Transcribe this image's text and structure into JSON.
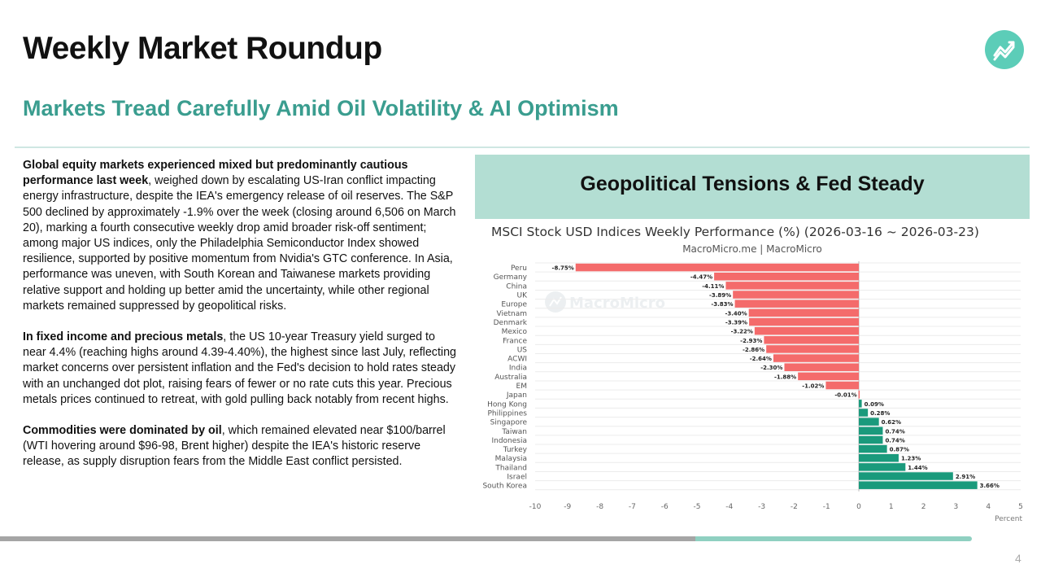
{
  "header": {
    "title": "Weekly Market Roundup",
    "subtitle": "Markets Tread Carefully Amid Oil Volatility & AI Optimism",
    "logo_icon": "trend-chart-logo-icon"
  },
  "body_text": {
    "p1_bold": "Global equity markets experienced mixed but predominantly cautious performance last week",
    "p1_rest": ", weighed down by escalating US-Iran conflict impacting energy infrastructure, despite the IEA's emergency release of oil reserves. The S&P 500 declined by approximately -1.9% over the week (closing around 6,506 on March 20), marking a fourth consecutive weekly drop amid broader risk-off sentiment; among major US indices, only the Philadelphia Semiconductor Index showed resilience, supported by positive momentum from Nvidia's GTC conference. In Asia, performance was uneven, with South Korean and Taiwanese markets providing relative support and holding up better amid the uncertainty, while other regional markets remained suppressed by geopolitical risks.",
    "p2_bold": "In fixed income and precious metals",
    "p2_rest": ", the US 10-year Treasury yield surged to near 4.4% (reaching highs around 4.39-4.40%), the highest since last July, reflecting market concerns over persistent inflation and the Fed's decision to hold rates steady with an unchanged dot plot, raising fears of fewer or no rate cuts this year. Precious metals prices continued to retreat, with gold pulling back notably from recent highs.",
    "p3_bold": "Commodities were dominated by oil",
    "p3_rest": ", which remained elevated near $100/barrel (WTI hovering around $96-98, Brent higher) despite the IEA's historic reserve release, as supply disruption fears from the Middle East conflict persisted."
  },
  "panel": {
    "title": "Geopolitical Tensions & Fed Steady"
  },
  "chart_data": {
    "type": "bar",
    "orientation": "horizontal",
    "title": "MSCI Stock USD Indices Weekly Performance (%) (2026-03-16 ~ 2026-03-23)",
    "subtitle": "MacroMicro.me | MacroMicro",
    "watermark": "MacroMicro",
    "xlabel": "Percent",
    "xlim": [
      -10,
      5
    ],
    "xticks": [
      "-10",
      "-9",
      "-8",
      "-7",
      "-6",
      "-5",
      "-4",
      "-3",
      "-2",
      "-1",
      "0",
      "1",
      "2",
      "3",
      "4",
      "5"
    ],
    "grid": true,
    "categories": [
      "Peru",
      "Germany",
      "China",
      "UK",
      "Europe",
      "Vietnam",
      "Denmark",
      "Mexico",
      "France",
      "US",
      "ACWI",
      "India",
      "Australia",
      "EM",
      "Japan",
      "Hong Kong",
      "Philippines",
      "Singapore",
      "Taiwan",
      "Indonesia",
      "Turkey",
      "Malaysia",
      "Thailand",
      "Israel",
      "South Korea"
    ],
    "values": [
      -8.75,
      -4.47,
      -4.11,
      -3.89,
      -3.83,
      -3.4,
      -3.39,
      -3.22,
      -2.93,
      -2.86,
      -2.64,
      -2.3,
      -1.88,
      -1.02,
      -0.01,
      0.09,
      0.28,
      0.62,
      0.74,
      0.74,
      0.87,
      1.23,
      1.44,
      2.91,
      3.66
    ],
    "value_labels": [
      "-8.75%",
      "-4.47%",
      "-4.11%",
      "-3.89%",
      "-3.83%",
      "-3.40%",
      "-3.39%",
      "-3.22%",
      "-2.93%",
      "-2.86%",
      "-2.64%",
      "-2.30%",
      "-1.88%",
      "-1.02%",
      "-0.01%",
      "0.09%",
      "0.28%",
      "0.62%",
      "0.74%",
      "0.74%",
      "0.87%",
      "1.23%",
      "1.44%",
      "2.91%",
      "3.66%"
    ],
    "colors": {
      "negative": "#f46b6b",
      "positive": "#1a9a7c"
    }
  },
  "footer": {
    "page_number": "4"
  }
}
